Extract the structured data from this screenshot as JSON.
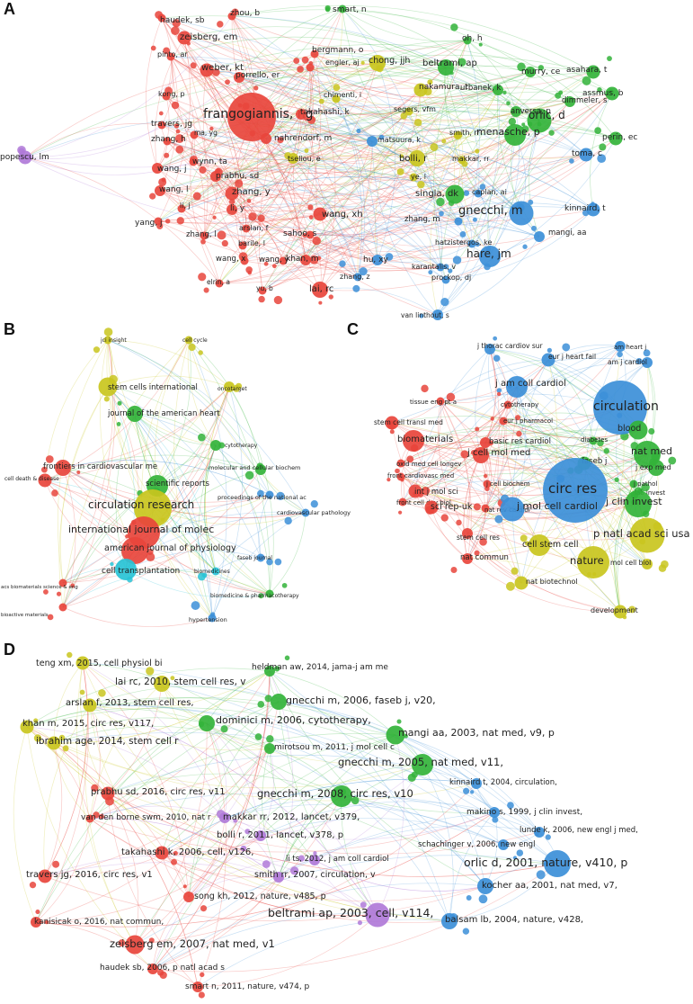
{
  "figure": {
    "panels": [
      {
        "letter": "A",
        "clusters": {
          "red": "#e8453c",
          "green": "#33b33a",
          "blue": "#3c8fd8",
          "yellow": "#c9c51e",
          "purple": "#b07ad8"
        },
        "nodes": [
          {
            "label": "haudek, sb",
            "cluster": "red"
          },
          {
            "label": "zhou, b",
            "cluster": "red"
          },
          {
            "label": "smart, n",
            "cluster": "green"
          },
          {
            "label": "zeisberg, em",
            "cluster": "red"
          },
          {
            "label": "bergmann, o",
            "cluster": "red"
          },
          {
            "label": "oh, h",
            "cluster": "green"
          },
          {
            "label": "pinto, ar",
            "cluster": "red"
          },
          {
            "label": "engler, aj",
            "cluster": "red"
          },
          {
            "label": "chong, jjh",
            "cluster": "yellow"
          },
          {
            "label": "beltrami, ap",
            "cluster": "green"
          },
          {
            "label": "weber, kt",
            "cluster": "red"
          },
          {
            "label": "porrello, er",
            "cluster": "red"
          },
          {
            "label": "murry, ce",
            "cluster": "green"
          },
          {
            "label": "asahara, t",
            "cluster": "green"
          },
          {
            "label": "nakamura, t",
            "cluster": "yellow"
          },
          {
            "label": "kong, p",
            "cluster": "red"
          },
          {
            "label": "urbanek, k",
            "cluster": "green"
          },
          {
            "label": "assmus, b",
            "cluster": "green"
          },
          {
            "label": "dimmeler, s",
            "cluster": "green"
          },
          {
            "label": "frangogiannis, ng",
            "cluster": "red"
          },
          {
            "label": "chimenti, i",
            "cluster": "yellow"
          },
          {
            "label": "orlic, d",
            "cluster": "green"
          },
          {
            "label": "travers, jg",
            "cluster": "red"
          },
          {
            "label": "takahashi, k",
            "cluster": "red"
          },
          {
            "label": "segers, vfm",
            "cluster": "yellow"
          },
          {
            "label": "anversa, p",
            "cluster": "green"
          },
          {
            "label": "ma, yg",
            "cluster": "red"
          },
          {
            "label": "menasche, p",
            "cluster": "green"
          },
          {
            "label": "zhang, h",
            "cluster": "red"
          },
          {
            "label": "smith, rr",
            "cluster": "yellow"
          },
          {
            "label": "perin, ec",
            "cluster": "green"
          },
          {
            "label": "nahrendorf, m",
            "cluster": "red"
          },
          {
            "label": "matsuura, k",
            "cluster": "blue"
          },
          {
            "label": "popescu, lm",
            "cluster": "purple"
          },
          {
            "label": "tseliou, e",
            "cluster": "yellow"
          },
          {
            "label": "bolli, r",
            "cluster": "yellow"
          },
          {
            "label": "makkar, rr",
            "cluster": "yellow"
          },
          {
            "label": "wynn, ta",
            "cluster": "red"
          },
          {
            "label": "toma, c",
            "cluster": "blue"
          },
          {
            "label": "wang, j",
            "cluster": "red"
          },
          {
            "label": "prabhu, sd",
            "cluster": "red"
          },
          {
            "label": "ye, l",
            "cluster": "yellow"
          },
          {
            "label": "zhang, y",
            "cluster": "red"
          },
          {
            "label": "wang, l",
            "cluster": "red"
          },
          {
            "label": "singla, dk",
            "cluster": "green"
          },
          {
            "label": "caplan, ai",
            "cluster": "blue"
          },
          {
            "label": "li, j",
            "cluster": "red"
          },
          {
            "label": "li, y",
            "cluster": "red"
          },
          {
            "label": "gnecchi, m",
            "cluster": "blue"
          },
          {
            "label": "kinnaird, t",
            "cluster": "blue"
          },
          {
            "label": "yang, j",
            "cluster": "red"
          },
          {
            "label": "wang, xh",
            "cluster": "red"
          },
          {
            "label": "zhang, m",
            "cluster": "blue"
          },
          {
            "label": "zhang, l",
            "cluster": "red"
          },
          {
            "label": "arslan, f",
            "cluster": "red"
          },
          {
            "label": "sahoo, s",
            "cluster": "red"
          },
          {
            "label": "mangi, aa",
            "cluster": "blue"
          },
          {
            "label": "barile, l",
            "cluster": "red"
          },
          {
            "label": "hatzistergos, ke",
            "cluster": "blue"
          },
          {
            "label": "wang, x",
            "cluster": "red"
          },
          {
            "label": "wang, y",
            "cluster": "red"
          },
          {
            "label": "khan, m",
            "cluster": "red"
          },
          {
            "label": "hu, xy",
            "cluster": "blue"
          },
          {
            "label": "hare, jm",
            "cluster": "blue"
          },
          {
            "label": "elrin, a",
            "cluster": "red"
          },
          {
            "label": "yu, b",
            "cluster": "red"
          },
          {
            "label": "lai, rc",
            "cluster": "red"
          },
          {
            "label": "zhang, z",
            "cluster": "blue"
          },
          {
            "label": "karantalis, v",
            "cluster": "blue"
          },
          {
            "label": "prockop, dj",
            "cluster": "blue"
          },
          {
            "label": "van linthout, s",
            "cluster": "blue"
          }
        ]
      },
      {
        "letter": "B",
        "clusters": {
          "red": "#e8453c",
          "green": "#33b33a",
          "blue": "#3c8fd8",
          "yellow": "#c9c51e",
          "purple": "#b07ad8",
          "cyan": "#28c3d6",
          "orange": "#f29a2e"
        },
        "nodes": [
          {
            "label": "jci insight",
            "cluster": "yellow"
          },
          {
            "label": "cell cycle",
            "cluster": "yellow"
          },
          {
            "label": "stem cells international",
            "cluster": "yellow"
          },
          {
            "label": "oncotarget",
            "cluster": "yellow"
          },
          {
            "label": "journal of the american heart",
            "cluster": "green"
          },
          {
            "label": "cytotherapy",
            "cluster": "green"
          },
          {
            "label": "frontiers in cardiovascular me",
            "cluster": "red"
          },
          {
            "label": "molecular and cellular biochem",
            "cluster": "green"
          },
          {
            "label": "cell death & disease",
            "cluster": "red"
          },
          {
            "label": "scientific reports",
            "cluster": "green"
          },
          {
            "label": "proceedings of the national ac",
            "cluster": "blue"
          },
          {
            "label": "circulation research",
            "cluster": "yellow"
          },
          {
            "label": "cardiovascular pathology",
            "cluster": "blue"
          },
          {
            "label": "international journal of molec",
            "cluster": "red"
          },
          {
            "label": "faseb journal",
            "cluster": "blue"
          },
          {
            "label": "american journal of physiology",
            "cluster": "red"
          },
          {
            "label": "biomedicines",
            "cluster": "cyan"
          },
          {
            "label": "cell transplantation",
            "cluster": "cyan"
          },
          {
            "label": "acs biomaterials science & eng",
            "cluster": "red"
          },
          {
            "label": "biomedicine & pharmacotherapy",
            "cluster": "green"
          },
          {
            "label": "bioactive materials",
            "cluster": "red"
          },
          {
            "label": "hypertension",
            "cluster": "blue"
          }
        ]
      },
      {
        "letter": "C",
        "clusters": {
          "red": "#e8453c",
          "green": "#33b33a",
          "blue": "#3c8fd8",
          "yellow": "#c9c51e",
          "purple": "#b07ad8"
        },
        "nodes": [
          {
            "label": "j thorac cardiov sur",
            "cluster": "blue"
          },
          {
            "label": "am heart j",
            "cluster": "blue"
          },
          {
            "label": "eur j heart fail",
            "cluster": "blue"
          },
          {
            "label": "am j cardiol",
            "cluster": "blue"
          },
          {
            "label": "j am coll cardiol",
            "cluster": "blue"
          },
          {
            "label": "tissue eng pt a",
            "cluster": "red"
          },
          {
            "label": "cytotherapy",
            "cluster": "red"
          },
          {
            "label": "circulation",
            "cluster": "blue"
          },
          {
            "label": "stem cell transl med",
            "cluster": "red"
          },
          {
            "label": "eur j pharmacol",
            "cluster": "red"
          },
          {
            "label": "diabetes",
            "cluster": "green"
          },
          {
            "label": "blood",
            "cluster": "green"
          },
          {
            "label": "biomaterials",
            "cluster": "red"
          },
          {
            "label": "basic res cardiol",
            "cluster": "red"
          },
          {
            "label": "nat med",
            "cluster": "green"
          },
          {
            "label": "j cell mol med",
            "cluster": "red"
          },
          {
            "label": "oxid med cell longev",
            "cluster": "red"
          },
          {
            "label": "faseb j",
            "cluster": "green"
          },
          {
            "label": "j exp med",
            "cluster": "green"
          },
          {
            "label": "front cardiovasc med",
            "cluster": "red"
          },
          {
            "label": "j cell biochem",
            "cluster": "red"
          },
          {
            "label": "j pathol",
            "cluster": "green"
          },
          {
            "label": "lab invest",
            "cluster": "green"
          },
          {
            "label": "int j mol sci",
            "cluster": "red"
          },
          {
            "label": "circ res",
            "cluster": "blue"
          },
          {
            "label": "j clin invest",
            "cluster": "green"
          },
          {
            "label": "front cell dev biol",
            "cluster": "red"
          },
          {
            "label": "nat rev cardiol",
            "cluster": "red"
          },
          {
            "label": "sci rep-uk",
            "cluster": "red"
          },
          {
            "label": "j mol cell cardiol",
            "cluster": "blue"
          },
          {
            "label": "p natl acad sci usa",
            "cluster": "yellow"
          },
          {
            "label": "stem cell res",
            "cluster": "red"
          },
          {
            "label": "cell stem cell",
            "cluster": "yellow"
          },
          {
            "label": "nature",
            "cluster": "yellow"
          },
          {
            "label": "mol cell biol",
            "cluster": "yellow"
          },
          {
            "label": "nat commun",
            "cluster": "red"
          },
          {
            "label": "nat biotechnol",
            "cluster": "yellow"
          },
          {
            "label": "development",
            "cluster": "yellow"
          }
        ]
      },
      {
        "letter": "D",
        "clusters": {
          "red": "#e8453c",
          "green": "#33b33a",
          "blue": "#3c8fd8",
          "yellow": "#c9c51e",
          "purple": "#b07ad8"
        },
        "nodes": [
          {
            "label": "teng xm, 2015, cell physiol bi",
            "cluster": "yellow"
          },
          {
            "label": "heldman aw, 2014, jama-j am me",
            "cluster": "green"
          },
          {
            "label": "lai rc, 2010, stem cell res, v",
            "cluster": "yellow"
          },
          {
            "label": "gnecchi m, 2006, faseb j, v20,",
            "cluster": "green"
          },
          {
            "label": "arslan f, 2013, stem cell res,",
            "cluster": "yellow"
          },
          {
            "label": "dominici m, 2006, cytotherapy,",
            "cluster": "green"
          },
          {
            "label": "khan m, 2015, circ res, v117,",
            "cluster": "yellow"
          },
          {
            "label": "mangi aa, 2003, nat med, v9, p",
            "cluster": "green"
          },
          {
            "label": "ibrahim age, 2014, stem cell r",
            "cluster": "yellow"
          },
          {
            "label": "mirotsou m, 2011, j mol cell c",
            "cluster": "green"
          },
          {
            "label": "gnecchi m, 2005, nat med, v11,",
            "cluster": "green"
          },
          {
            "label": "kinnaird t, 2004, circulation,",
            "cluster": "blue"
          },
          {
            "label": "prabhu sd, 2016, circ res, v11",
            "cluster": "red"
          },
          {
            "label": "gnecchi m, 2008, circ res, v10",
            "cluster": "green"
          },
          {
            "label": "makino s, 1999, j clin invest,",
            "cluster": "blue"
          },
          {
            "label": "van den borne swm, 2010, nat r",
            "cluster": "red"
          },
          {
            "label": "makkar rr, 2012, lancet, v379,",
            "cluster": "purple"
          },
          {
            "label": "lunde k, 2006, new engl j med,",
            "cluster": "blue"
          },
          {
            "label": "bolli r, 2011, lancet, v378, p",
            "cluster": "purple"
          },
          {
            "label": "schachinger v, 2006, new engl",
            "cluster": "blue"
          },
          {
            "label": "takahashi k, 2006, cell, v126,",
            "cluster": "red"
          },
          {
            "label": "li ts, 2012, j am coll cardiol",
            "cluster": "purple"
          },
          {
            "label": "orlic d, 2001, nature, v410, p",
            "cluster": "blue"
          },
          {
            "label": "smith rr, 2007, circulation, v",
            "cluster": "purple"
          },
          {
            "label": "travers jg, 2016, circ res, v1",
            "cluster": "red"
          },
          {
            "label": "kocher aa, 2001, nat med, v7,",
            "cluster": "blue"
          },
          {
            "label": "song kh, 2012, nature, v485, p",
            "cluster": "red"
          },
          {
            "label": "beltrami ap, 2003, cell, v114,",
            "cluster": "purple"
          },
          {
            "label": "balsam lb, 2004, nature, v428,",
            "cluster": "blue"
          },
          {
            "label": "kanisicak o, 2016, nat commun,",
            "cluster": "red"
          },
          {
            "label": "zeisberg em, 2007, nat med, v1",
            "cluster": "red"
          },
          {
            "label": "haudek sb, 2006, p natl acad s",
            "cluster": "red"
          },
          {
            "label": "smart n, 2011, nature, v474, p",
            "cluster": "red"
          }
        ]
      }
    ]
  }
}
